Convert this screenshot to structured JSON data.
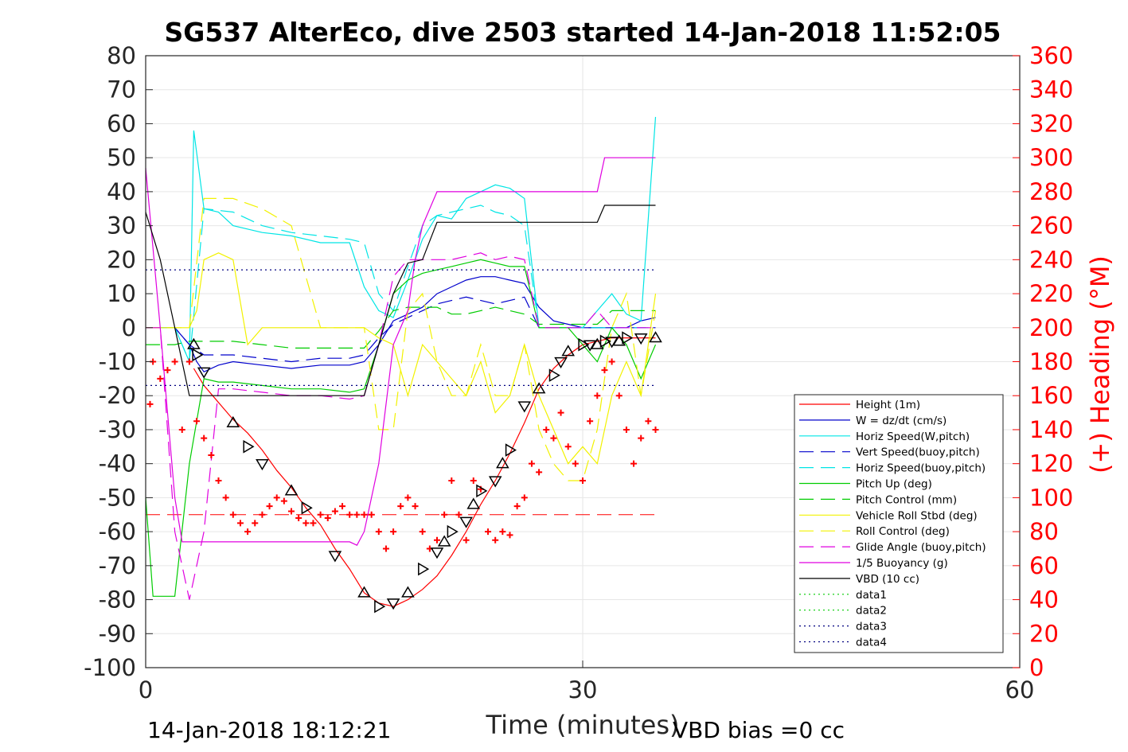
{
  "chart_data": {
    "type": "line",
    "title": "SG537 AlterEco, dive 2503 started 14-Jan-2018 11:52:05",
    "xlabel": "Time (minutes)",
    "ylabel_right": "(+) Heading (°M)",
    "xlim": [
      0,
      60
    ],
    "ylim": [
      -100,
      80
    ],
    "ylim_right": [
      0,
      360
    ],
    "x_ticks": [
      "0",
      "30",
      "60"
    ],
    "y_ticks": [
      "80",
      "70",
      "60",
      "50",
      "40",
      "30",
      "20",
      "10",
      "0",
      "-10",
      "-20",
      "-30",
      "-40",
      "-50",
      "-60",
      "-70",
      "-80",
      "-90",
      "-100"
    ],
    "y_right_ticks": [
      "360",
      "340",
      "320",
      "300",
      "280",
      "260",
      "240",
      "220",
      "200",
      "180",
      "160",
      "140",
      "120",
      "100",
      "80",
      "60",
      "40",
      "20",
      "0"
    ],
    "grid": true,
    "legend_position": "lower-right",
    "footer_left": "14-Jan-2018 18:12:21",
    "footer_right": "VBD bias =0 cc",
    "colors": {
      "red": "#ff0000",
      "blue": "#0000cc",
      "cyan": "#00e5e5",
      "green": "#00cc00",
      "yellow": "#f2f200",
      "magenta": "#e000e0",
      "black": "#000000"
    },
    "series": [
      {
        "name": "Height (1m)",
        "color": "#ff0000",
        "style": "solid",
        "x": [
          3.3,
          4,
          5,
          6,
          7,
          8,
          9,
          10,
          11,
          12,
          13,
          14,
          15,
          16,
          17,
          18,
          19,
          20,
          21,
          22,
          23,
          24,
          25,
          26,
          27,
          28,
          29,
          30,
          31,
          32,
          33,
          34,
          35
        ],
        "y": [
          -12,
          -17,
          -22,
          -27,
          -31,
          -36,
          -42,
          -47,
          -53,
          -58,
          -65,
          -71,
          -78,
          -81,
          -82,
          -80,
          -77,
          -73,
          -67,
          -60,
          -52,
          -45,
          -37,
          -28,
          -18,
          -12,
          -8,
          -5,
          -4,
          -3,
          -3,
          -3,
          -3
        ]
      },
      {
        "name": "W = dz/dt (cm/s)",
        "color": "#0000cc",
        "style": "solid",
        "x": [
          0,
          1,
          2,
          3,
          3.5,
          4,
          5,
          6,
          8,
          10,
          12,
          14,
          15,
          16,
          17,
          18,
          19,
          20,
          21,
          22,
          23,
          24,
          25,
          26,
          27,
          28,
          29,
          30,
          31,
          32,
          33,
          34,
          35
        ],
        "y": [
          0,
          0,
          0,
          -5,
          -10,
          -13,
          -11,
          -10,
          -11,
          -12,
          -11,
          -11,
          -10,
          -5,
          2,
          4,
          6,
          10,
          12,
          14,
          15,
          15,
          14,
          13,
          6,
          2,
          1,
          0,
          0,
          0,
          0,
          2,
          3
        ]
      },
      {
        "name": "Horiz Speed(W,pitch)",
        "color": "#00e5e5",
        "style": "solid",
        "x": [
          0,
          1,
          2,
          3,
          3.3,
          4,
          5,
          6,
          8,
          10,
          12,
          14,
          15,
          16,
          17,
          18,
          19,
          20,
          21,
          22,
          23,
          24,
          25,
          26,
          27,
          28,
          29,
          30,
          31,
          32,
          33,
          34,
          35
        ],
        "y": [
          0,
          0,
          0,
          -10,
          58,
          35,
          34,
          30,
          28,
          27,
          25,
          25,
          12,
          5,
          3,
          14,
          26,
          33,
          32,
          38,
          40,
          42,
          41,
          38,
          0,
          0,
          0,
          0,
          5,
          10,
          4,
          2,
          62
        ]
      },
      {
        "name": "Vert Speed(buoy,pitch)",
        "color": "#0000cc",
        "style": "dashed",
        "x": [
          0,
          1,
          2,
          3,
          4,
          6,
          8,
          10,
          12,
          14,
          15,
          16,
          17,
          18,
          19,
          20,
          21,
          22,
          23,
          24,
          25,
          26,
          27,
          28,
          29,
          30,
          31,
          32,
          33,
          34,
          35
        ],
        "y": [
          0,
          0,
          0,
          -5,
          -8,
          -8,
          -9,
          -10,
          -9,
          -9,
          -8,
          -3,
          1,
          3,
          5,
          7,
          8,
          9,
          8,
          7,
          8,
          9,
          0,
          0,
          0,
          0,
          0,
          0,
          0,
          0,
          0
        ]
      },
      {
        "name": "Horiz Speed(buoy,pitch)",
        "color": "#00e5e5",
        "style": "dashed",
        "x": [
          0,
          1,
          2,
          3,
          4,
          6,
          8,
          10,
          12,
          14,
          15,
          16,
          17,
          18,
          19,
          20,
          21,
          22,
          23,
          24,
          25,
          26,
          27,
          28,
          29,
          30,
          31,
          32,
          33,
          34,
          35
        ],
        "y": [
          0,
          0,
          0,
          -10,
          35,
          34,
          30,
          28,
          27,
          26,
          25,
          10,
          5,
          18,
          30,
          33,
          34,
          35,
          36,
          34,
          33,
          30,
          0,
          0,
          0,
          0,
          0,
          0,
          0,
          0,
          0
        ]
      },
      {
        "name": "Pitch Up (deg)",
        "color": "#00cc00",
        "style": "solid",
        "x": [
          0,
          0.5,
          1,
          2,
          3,
          4,
          5,
          6,
          8,
          10,
          12,
          14,
          15,
          16,
          17,
          18,
          19,
          20,
          21,
          22,
          23,
          24,
          25,
          26,
          27,
          28,
          29,
          30,
          31,
          32,
          33,
          34,
          35
        ],
        "y": [
          -50,
          -79,
          -79,
          -79,
          -40,
          -15,
          -16,
          -16,
          -17,
          -18,
          -18,
          -19,
          -18,
          -5,
          10,
          14,
          16,
          17,
          18,
          19,
          20,
          19,
          18,
          18,
          0,
          0,
          0,
          -5,
          -10,
          0,
          -5,
          -15,
          -5
        ]
      },
      {
        "name": "Pitch Control (mm)",
        "color": "#00cc00",
        "style": "dashed",
        "x": [
          0,
          2,
          3,
          4,
          6,
          8,
          10,
          12,
          14,
          15,
          16,
          17,
          18,
          19,
          20,
          21,
          22,
          23,
          24,
          25,
          26,
          27,
          28,
          29,
          30,
          31,
          32,
          33,
          34,
          35
        ],
        "y": [
          -5,
          -5,
          -4,
          -4,
          -4,
          -5,
          -6,
          -6,
          -6,
          -6,
          -1,
          5,
          6,
          6,
          6,
          4,
          4,
          5,
          6,
          5,
          4,
          1,
          1,
          1,
          1,
          1,
          5,
          5,
          5,
          5
        ]
      },
      {
        "name": "Vehicle Roll Stbd (deg)",
        "color": "#f2f200",
        "style": "solid",
        "x": [
          0,
          2,
          3,
          3.5,
          4,
          5,
          6,
          7,
          8,
          10,
          12,
          14,
          15,
          16,
          17,
          18,
          19,
          20,
          21,
          22,
          23,
          24,
          25,
          26,
          27,
          28,
          29,
          30,
          31,
          32,
          33,
          34,
          35
        ],
        "y": [
          0,
          0,
          0,
          5,
          20,
          22,
          20,
          -5,
          0,
          0,
          0,
          0,
          0,
          -3,
          -5,
          -20,
          -5,
          -10,
          -15,
          -20,
          -10,
          -25,
          -20,
          -5,
          -20,
          -30,
          -40,
          -35,
          -40,
          -20,
          -10,
          -20,
          10
        ]
      },
      {
        "name": "Roll Control (deg)",
        "color": "#f2f200",
        "style": "dashed",
        "x": [
          0,
          2,
          3,
          4,
          6,
          8,
          10,
          12,
          14,
          15,
          16,
          17,
          18,
          19,
          20,
          21,
          22,
          23,
          24,
          25,
          26,
          27,
          28,
          29,
          30,
          31,
          32,
          33,
          34,
          35
        ],
        "y": [
          0,
          0,
          0,
          38,
          38,
          35,
          30,
          0,
          0,
          0,
          -30,
          -30,
          5,
          10,
          -10,
          -20,
          -20,
          -5,
          -20,
          -20,
          -5,
          -30,
          -40,
          -45,
          -45,
          -30,
          0,
          10,
          -20,
          5
        ]
      },
      {
        "name": "Glide Angle (buoy,pitch)",
        "color": "#e000e0",
        "style": "dashed",
        "x": [
          0,
          0.5,
          1,
          2,
          3,
          4,
          5,
          6,
          8,
          10,
          12,
          14,
          15,
          16,
          17,
          18,
          19,
          20,
          21,
          22,
          23,
          24,
          25,
          26,
          27,
          28,
          29,
          30,
          31,
          32,
          33,
          34,
          35
        ],
        "y": [
          0,
          0,
          0,
          -60,
          -80,
          -60,
          -18,
          -18,
          -19,
          -20,
          -20,
          -21,
          -20,
          -5,
          15,
          20,
          20,
          20,
          20,
          21,
          22,
          20,
          21,
          20,
          0,
          0,
          0,
          0,
          5,
          0,
          0,
          0,
          0
        ]
      },
      {
        "name": "1/5 Buoyancy (g)",
        "color": "#e000e0",
        "style": "solid",
        "x": [
          0,
          1,
          2,
          2.5,
          3,
          4,
          6,
          8,
          10,
          12,
          14,
          14.5,
          15,
          16,
          17,
          18,
          18.5,
          19,
          20,
          22,
          24,
          26,
          28,
          29,
          31,
          31.5,
          33,
          35
        ],
        "y": [
          47,
          0,
          -50,
          -63,
          -63,
          -63,
          -63,
          -63,
          -63,
          -63,
          -63,
          -64,
          -60,
          -40,
          -5,
          5,
          20,
          30,
          40,
          40,
          40,
          40,
          40,
          40,
          40,
          50,
          50,
          50
        ]
      },
      {
        "name": "VBD (10 cc)",
        "color": "#000000",
        "style": "solid",
        "x": [
          0,
          1,
          2,
          3,
          4,
          6,
          8,
          10,
          12,
          14,
          15,
          16,
          17,
          18,
          19,
          20,
          22,
          24,
          26,
          28,
          30,
          31,
          31.5,
          33,
          35
        ],
        "y": [
          34,
          20,
          0,
          -20,
          -20,
          -20,
          -20,
          -20,
          -20,
          -20,
          -20,
          -5,
          10,
          19,
          20,
          31,
          31,
          31,
          31,
          31,
          31,
          31,
          36,
          36,
          36
        ]
      },
      {
        "name": "data1",
        "color": "#00cc00",
        "style": "dotted",
        "x": [],
        "y": []
      },
      {
        "name": "data2",
        "color": "#00cc00",
        "style": "dotted",
        "x": [],
        "y": []
      },
      {
        "name": "data3",
        "color": "#000080",
        "style": "dotted",
        "x": [
          0,
          35
        ],
        "y": [
          17,
          17
        ]
      },
      {
        "name": "data4",
        "color": "#000080",
        "style": "dotted",
        "x": [
          0,
          35
        ],
        "y": [
          -17,
          -17
        ]
      }
    ],
    "heading_reference": {
      "value": 90,
      "color": "#ff0000",
      "style": "dashed",
      "x": [
        0,
        35
      ]
    },
    "heading_points": {
      "x": [
        0.3,
        0.5,
        1,
        1.5,
        2,
        2.5,
        3,
        3.5,
        4,
        4.5,
        5,
        5.5,
        6,
        6.5,
        7,
        7.5,
        8,
        8.5,
        9,
        9.5,
        10,
        10.5,
        11,
        11.5,
        12,
        12.5,
        13,
        13.5,
        14,
        14.5,
        15,
        15.5,
        16,
        16.5,
        17,
        17.5,
        18,
        18.5,
        19,
        19.5,
        20,
        20.5,
        21,
        21.5,
        22,
        22.5,
        23,
        23.5,
        24,
        24.5,
        25,
        25.5,
        26,
        26.5,
        27,
        27.5,
        28,
        28.5,
        29,
        29.5,
        30,
        30.5,
        31,
        31.5,
        32,
        32.5,
        33,
        33.5,
        34,
        34.5,
        35
      ],
      "y": [
        155,
        180,
        170,
        175,
        180,
        140,
        180,
        145,
        135,
        125,
        110,
        100,
        90,
        85,
        80,
        85,
        90,
        95,
        100,
        98,
        92,
        88,
        85,
        85,
        90,
        88,
        92,
        95,
        90,
        90,
        90,
        90,
        80,
        70,
        80,
        95,
        100,
        95,
        80,
        70,
        75,
        90,
        110,
        90,
        75,
        110,
        105,
        80,
        75,
        80,
        78,
        95,
        100,
        120,
        115,
        140,
        135,
        150,
        130,
        120,
        110,
        145,
        160,
        175,
        180,
        160,
        140,
        120,
        135,
        145,
        140
      ]
    },
    "markers": {
      "x": [
        3.3,
        3.5,
        4,
        6,
        7,
        8,
        10,
        11,
        13,
        15,
        16,
        17,
        18,
        19,
        20,
        20.5,
        21,
        22,
        22.5,
        23,
        24,
        24.5,
        25,
        26,
        27,
        28,
        28.5,
        29,
        30,
        30.5,
        31,
        31.5,
        32,
        32.5,
        33,
        34,
        35
      ],
      "y": [
        -5,
        -8,
        -13,
        -28,
        -35,
        -40,
        -48,
        -53,
        -67,
        -78,
        -82,
        -81,
        -78,
        -71,
        -66,
        -63,
        -60,
        -57,
        -52,
        -48,
        -45,
        -40,
        -36,
        -23,
        -18,
        -14,
        -10,
        -7,
        -5,
        -5,
        -5,
        -4,
        -4,
        -4,
        -3,
        -3,
        -3
      ]
    }
  }
}
